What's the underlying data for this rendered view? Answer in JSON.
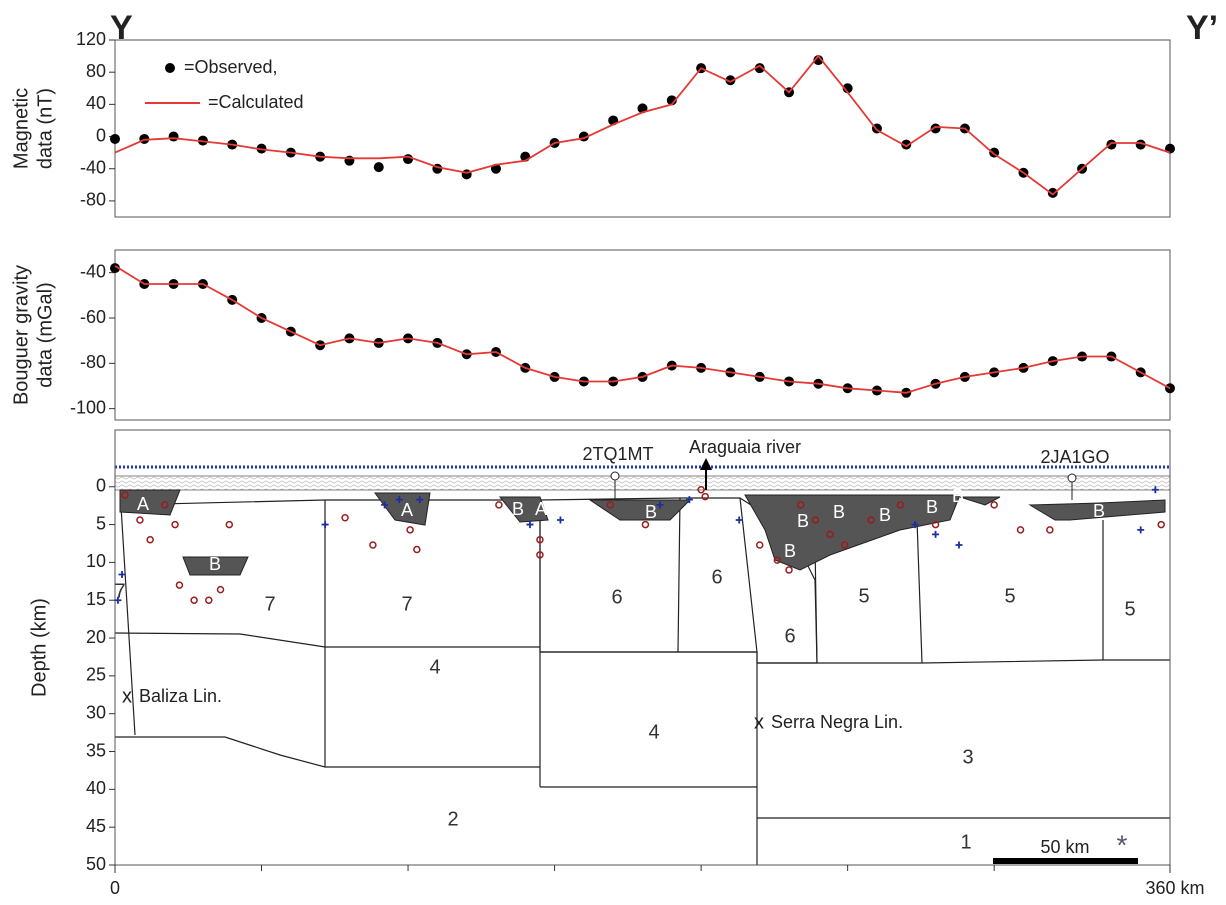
{
  "header": {
    "left": "Y",
    "right": "Y’"
  },
  "chart_data": [
    {
      "type": "line",
      "ylabel": [
        "Magnetic",
        "data (nT)"
      ],
      "x": [
        0,
        10,
        20,
        30,
        40,
        50,
        60,
        70,
        80,
        90,
        100,
        110,
        120,
        130,
        140,
        150,
        160,
        170,
        180,
        190,
        200,
        210,
        220,
        230,
        240,
        250,
        260,
        270,
        280,
        290,
        300,
        310,
        320,
        330,
        340,
        350,
        360
      ],
      "series": [
        {
          "name": "=Observed,",
          "color": "#000000",
          "marker": "dot",
          "values": [
            -3,
            -3,
            0,
            -5,
            -10,
            -15,
            -20,
            -25,
            -30,
            -38,
            -28,
            -40,
            -47,
            -40,
            -25,
            -8,
            0,
            20,
            35,
            45,
            85,
            70,
            85,
            55,
            95,
            60,
            10,
            -10,
            10,
            10,
            -20,
            -45,
            -70,
            -40,
            -10,
            -10,
            -15
          ]
        },
        {
          "name": "=Calculated",
          "color": "#e53935",
          "marker": "line",
          "values": [
            -20,
            -4,
            -2,
            -6,
            -10,
            -16,
            -20,
            -25,
            -27,
            -27,
            -25,
            -38,
            -45,
            -35,
            -30,
            -8,
            -2,
            15,
            30,
            40,
            85,
            68,
            88,
            55,
            100,
            55,
            8,
            -12,
            12,
            10,
            -22,
            -45,
            -72,
            -40,
            -8,
            -8,
            -20
          ]
        }
      ],
      "xlim": [
        0,
        360
      ],
      "ylim": [
        -100,
        120
      ],
      "yticks": [
        -80,
        -40,
        0,
        40,
        80,
        120
      ]
    },
    {
      "type": "line",
      "ylabel": [
        "Bouguer gravity",
        "data (mGal)"
      ],
      "x": [
        0,
        10,
        20,
        30,
        40,
        50,
        60,
        70,
        80,
        90,
        100,
        110,
        120,
        130,
        140,
        150,
        160,
        170,
        180,
        190,
        200,
        210,
        220,
        230,
        240,
        250,
        260,
        270,
        280,
        290,
        300,
        310,
        320,
        330,
        340,
        350,
        360
      ],
      "series": [
        {
          "color": "#000000",
          "marker": "dot",
          "values": [
            -38,
            -45,
            -45,
            -45,
            -52,
            -60,
            -66,
            -72,
            -69,
            -71,
            -69,
            -71,
            -76,
            -75,
            -82,
            -86,
            -88,
            -88,
            -86,
            -81,
            -82,
            -84,
            -86,
            -88,
            -89,
            -91,
            -92,
            -93,
            -89,
            -86,
            -84,
            -82,
            -79,
            -77,
            -77,
            -84,
            -91
          ]
        },
        {
          "color": "#e53935",
          "marker": "line",
          "values": [
            -37,
            -45,
            -45,
            -45,
            -52,
            -60,
            -66,
            -72,
            -69,
            -71,
            -69,
            -71,
            -76,
            -75,
            -82,
            -86,
            -88,
            -88,
            -86,
            -81,
            -82,
            -84,
            -86,
            -88,
            -89,
            -91,
            -92,
            -93,
            -89,
            -86,
            -84,
            -82,
            -79,
            -77,
            -77,
            -84,
            -91
          ]
        }
      ],
      "xlim": [
        0,
        360
      ],
      "ylim": [
        -105,
        -30
      ],
      "yticks": [
        -100,
        -80,
        -60,
        -40
      ]
    },
    {
      "type": "section",
      "ylabel": "Depth (km)",
      "xlim": [
        0,
        360
      ],
      "xticks": [
        0,
        {
          "value": 360,
          "label": "360 km"
        }
      ],
      "x_minor_ticks": [
        50,
        100,
        150,
        200,
        250,
        300
      ],
      "ylim": [
        -7.5,
        50
      ],
      "yticks": [
        0,
        5,
        10,
        15,
        20,
        25,
        30,
        35,
        40,
        45,
        50
      ],
      "series": [
        {
          "color": "#9b1c1c",
          "marker": "circle",
          "x": [
            3.4,
            8.5,
            12,
            17,
            20.5,
            22,
            27,
            32,
            36,
            39,
            78.5,
            88,
            100.7,
            103,
            131,
            145,
            145,
            169,
            181,
            200,
            201.4,
            220,
            226,
            230,
            234,
            239,
            244,
            249,
            258,
            268,
            280,
            300,
            309,
            319,
            357
          ],
          "values": [
            1.1,
            4.4,
            7,
            2.4,
            5,
            13,
            15,
            15,
            13.6,
            5,
            4.1,
            7.7,
            5.7,
            8.3,
            2.4,
            7,
            9,
            2.4,
            5,
            0.4,
            1.3,
            7.7,
            9.7,
            11,
            2.4,
            4.4,
            6.3,
            7.7,
            4.4,
            2.4,
            5,
            2.4,
            5.7,
            5.7,
            5
          ]
        },
        {
          "color": "#1a2fa0",
          "marker": "plus",
          "x": [
            1,
            2.4,
            71.7,
            92,
            97,
            104,
            141.6,
            152,
            186,
            196,
            213,
            273,
            280,
            288,
            350,
            355
          ],
          "values": [
            15,
            11.6,
            5,
            2.4,
            1.7,
            1.7,
            5,
            4.4,
            2.4,
            1.7,
            4.4,
            5,
            6.3,
            7.7,
            5.7,
            0.4
          ]
        }
      ],
      "labels": [
        "A",
        "A",
        "B",
        "A",
        "B",
        "B",
        "B",
        "7",
        "7",
        "7",
        "6",
        "6",
        "6",
        "B",
        "B",
        "B",
        "B",
        "B",
        "B",
        "B",
        "5",
        "5",
        "5",
        "4",
        "4",
        "3",
        "2",
        "1"
      ],
      "annotations": {
        "baliza": "Baliza Lin.",
        "serra": "Serra Negra Lin.",
        "well1": "2TQ1MT",
        "river": "Araguaia river",
        "well2": "2JA1GO",
        "scale": "50 km"
      }
    }
  ]
}
